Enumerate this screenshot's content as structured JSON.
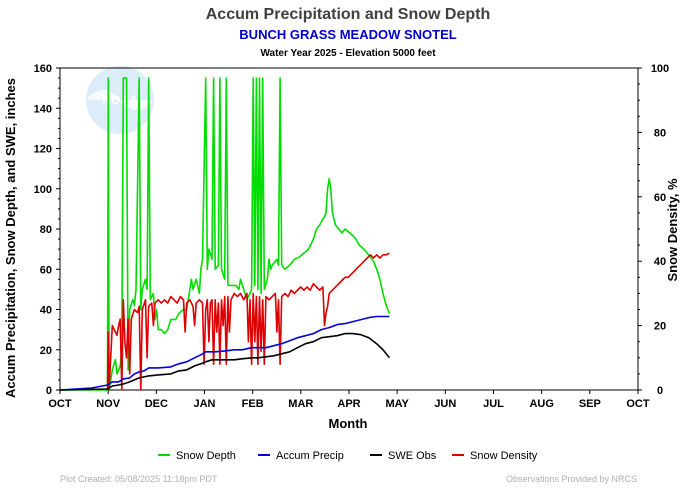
{
  "chart_data": {
    "type": "line",
    "title": "Accum Precipitation and Snow Depth",
    "subtitle": "BUNCH GRASS MEADOW SNOTEL",
    "subtitle2": "Water Year 2025 -  Elevation 5000 feet",
    "xlabel": "Month",
    "ylabel": "Accum Precipitation, Snow Depth, and SWE, inches",
    "y2label": "Snow Density, %",
    "x_ticks": [
      "OCT",
      "NOV",
      "DEC",
      "JAN",
      "FEB",
      "MAR",
      "APR",
      "MAY",
      "JUN",
      "JUL",
      "AUG",
      "SEP",
      "OCT"
    ],
    "y_ticks": [
      "0",
      "20",
      "40",
      "60",
      "80",
      "100",
      "120",
      "140",
      "160"
    ],
    "y2_ticks": [
      "0",
      "20",
      "40",
      "60",
      "80",
      "100"
    ],
    "ylim": [
      0,
      160
    ],
    "y2lim": [
      0,
      100
    ],
    "xlim_days": [
      0,
      365
    ],
    "grid": false,
    "legend_position": "bottom",
    "footer_left": "Plot Created: 05/08/2025 11:18pm PDT",
    "footer_right": "Observations Provided by NRCS",
    "watermark": "NOAA",
    "series": [
      {
        "name": "Snow Depth",
        "color": "#00dd00",
        "axis": "left",
        "points": [
          [
            0,
            0
          ],
          [
            30,
            0
          ],
          [
            30.5,
            155
          ],
          [
            31,
            0
          ],
          [
            33,
            10
          ],
          [
            35,
            15
          ],
          [
            36,
            8
          ],
          [
            38,
            12
          ],
          [
            39,
            20
          ],
          [
            40,
            155
          ],
          [
            42,
            155
          ],
          [
            43,
            10
          ],
          [
            44,
            40
          ],
          [
            46,
            45
          ],
          [
            47,
            42
          ],
          [
            48,
            50
          ],
          [
            50,
            155
          ],
          [
            51,
            40
          ],
          [
            52,
            50
          ],
          [
            54,
            55
          ],
          [
            55,
            50
          ],
          [
            56,
            155
          ],
          [
            57,
            45
          ],
          [
            59,
            48
          ],
          [
            60,
            35
          ],
          [
            61,
            40
          ],
          [
            62,
            30
          ],
          [
            64,
            30
          ],
          [
            66,
            28
          ],
          [
            68,
            30
          ],
          [
            70,
            35
          ],
          [
            73,
            35
          ],
          [
            75,
            38
          ],
          [
            78,
            40
          ],
          [
            80,
            40
          ],
          [
            81,
            45
          ],
          [
            83,
            55
          ],
          [
            84,
            50
          ],
          [
            86,
            55
          ],
          [
            88,
            48
          ],
          [
            89,
            60
          ],
          [
            90,
            65
          ],
          [
            92,
            155
          ],
          [
            93,
            60
          ],
          [
            94,
            70
          ],
          [
            96,
            65
          ],
          [
            97,
            155
          ],
          [
            98,
            60
          ],
          [
            100,
            62
          ],
          [
            101,
            155
          ],
          [
            102,
            60
          ],
          [
            104,
            55
          ],
          [
            105,
            155
          ],
          [
            106,
            52
          ],
          [
            108,
            52
          ],
          [
            111,
            52
          ],
          [
            113,
            50
          ],
          [
            114,
            55
          ],
          [
            116,
            50
          ],
          [
            118,
            45
          ],
          [
            120,
            48
          ],
          [
            121,
            50
          ],
          [
            122,
            155
          ],
          [
            123,
            52
          ],
          [
            124,
            155
          ],
          [
            125,
            50
          ],
          [
            126,
            155
          ],
          [
            127,
            48
          ],
          [
            128,
            155
          ],
          [
            129,
            50
          ],
          [
            131,
            55
          ],
          [
            132,
            65
          ],
          [
            133,
            60
          ],
          [
            134,
            62
          ],
          [
            137,
            65
          ],
          [
            138,
            62
          ],
          [
            139,
            155
          ],
          [
            140,
            62
          ],
          [
            142,
            60
          ],
          [
            145,
            62
          ],
          [
            148,
            65
          ],
          [
            151,
            66
          ],
          [
            154,
            68
          ],
          [
            157,
            70
          ],
          [
            160,
            75
          ],
          [
            162,
            80
          ],
          [
            164,
            82
          ],
          [
            166,
            85
          ],
          [
            167,
            86
          ],
          [
            168,
            88
          ],
          [
            169,
            100
          ],
          [
            170,
            105
          ],
          [
            171,
            100
          ],
          [
            172,
            88
          ],
          [
            174,
            82
          ],
          [
            176,
            80
          ],
          [
            178,
            78
          ],
          [
            180,
            80
          ],
          [
            183,
            78
          ],
          [
            186,
            76
          ],
          [
            189,
            72
          ],
          [
            192,
            70
          ],
          [
            195,
            67
          ],
          [
            198,
            64
          ],
          [
            200,
            60
          ],
          [
            202,
            55
          ],
          [
            204,
            48
          ],
          [
            206,
            42
          ],
          [
            208,
            38
          ]
        ]
      },
      {
        "name": "Accum Precip",
        "color": "#0000dd",
        "axis": "left",
        "points": [
          [
            0,
            0
          ],
          [
            20,
            1
          ],
          [
            30,
            2.5
          ],
          [
            33,
            4
          ],
          [
            37,
            4
          ],
          [
            40,
            5.5
          ],
          [
            44,
            6
          ],
          [
            47,
            8
          ],
          [
            50,
            9
          ],
          [
            53,
            9.5
          ],
          [
            56,
            11
          ],
          [
            62,
            11
          ],
          [
            70,
            11.5
          ],
          [
            75,
            13
          ],
          [
            80,
            14
          ],
          [
            85,
            16
          ],
          [
            89,
            17.5
          ],
          [
            92,
            19
          ],
          [
            98,
            19
          ],
          [
            105,
            19.5
          ],
          [
            110,
            20
          ],
          [
            115,
            20
          ],
          [
            121,
            21
          ],
          [
            125,
            21
          ],
          [
            130,
            21
          ],
          [
            135,
            22
          ],
          [
            140,
            23
          ],
          [
            145,
            24.5
          ],
          [
            150,
            26
          ],
          [
            155,
            27
          ],
          [
            160,
            28
          ],
          [
            165,
            30
          ],
          [
            170,
            31
          ],
          [
            175,
            32.5
          ],
          [
            180,
            33
          ],
          [
            185,
            34
          ],
          [
            190,
            35
          ],
          [
            195,
            36
          ],
          [
            200,
            36.5
          ],
          [
            208,
            36.5
          ]
        ]
      },
      {
        "name": "SWE Obs",
        "color": "#000000",
        "axis": "left",
        "points": [
          [
            0,
            0
          ],
          [
            30,
            0.5
          ],
          [
            33,
            2
          ],
          [
            37,
            2.5
          ],
          [
            40,
            3
          ],
          [
            44,
            4
          ],
          [
            47,
            5
          ],
          [
            50,
            6
          ],
          [
            53,
            6.5
          ],
          [
            56,
            7
          ],
          [
            62,
            7.5
          ],
          [
            70,
            8
          ],
          [
            75,
            9.5
          ],
          [
            80,
            10
          ],
          [
            85,
            12
          ],
          [
            89,
            13
          ],
          [
            92,
            14
          ],
          [
            96,
            15
          ],
          [
            100,
            15
          ],
          [
            105,
            15
          ],
          [
            110,
            15
          ],
          [
            115,
            15.5
          ],
          [
            121,
            16
          ],
          [
            125,
            16
          ],
          [
            130,
            16.5
          ],
          [
            135,
            17
          ],
          [
            140,
            18
          ],
          [
            145,
            19
          ],
          [
            150,
            21
          ],
          [
            155,
            23
          ],
          [
            160,
            24
          ],
          [
            165,
            26
          ],
          [
            170,
            26.5
          ],
          [
            175,
            27
          ],
          [
            180,
            28
          ],
          [
            185,
            28
          ],
          [
            190,
            27.5
          ],
          [
            195,
            26
          ],
          [
            200,
            23
          ],
          [
            204,
            20
          ],
          [
            208,
            16
          ]
        ]
      },
      {
        "name": "Snow Density",
        "color": "#dd0000",
        "axis": "right",
        "points": [
          [
            30,
            0
          ],
          [
            30.5,
            18
          ],
          [
            31,
            0
          ],
          [
            33,
            20
          ],
          [
            35,
            18
          ],
          [
            36,
            17
          ],
          [
            37,
            20
          ],
          [
            38,
            22
          ],
          [
            39,
            0
          ],
          [
            40,
            28
          ],
          [
            41,
            15
          ],
          [
            42,
            10
          ],
          [
            43,
            22
          ],
          [
            44,
            5
          ],
          [
            45,
            22
          ],
          [
            47,
            25
          ],
          [
            49,
            24
          ],
          [
            50,
            26
          ],
          [
            51,
            0
          ],
          [
            52,
            25
          ],
          [
            54,
            28
          ],
          [
            55,
            10
          ],
          [
            56,
            26
          ],
          [
            58,
            27
          ],
          [
            59,
            20
          ],
          [
            60,
            27
          ],
          [
            62,
            28
          ],
          [
            64,
            27
          ],
          [
            66,
            28
          ],
          [
            68,
            27
          ],
          [
            70,
            29
          ],
          [
            72,
            28
          ],
          [
            74,
            27
          ],
          [
            76,
            29
          ],
          [
            78,
            28
          ],
          [
            79,
            18
          ],
          [
            80,
            27
          ],
          [
            82,
            28
          ],
          [
            84,
            26
          ],
          [
            85,
            20
          ],
          [
            86,
            27
          ],
          [
            88,
            28
          ],
          [
            90,
            27
          ],
          [
            91,
            8
          ],
          [
            92,
            25
          ],
          [
            93,
            28
          ],
          [
            94,
            15
          ],
          [
            95,
            27
          ],
          [
            96,
            28
          ],
          [
            97,
            8
          ],
          [
            98,
            28
          ],
          [
            99,
            18
          ],
          [
            100,
            27
          ],
          [
            101,
            8
          ],
          [
            102,
            28
          ],
          [
            103,
            20
          ],
          [
            104,
            29
          ],
          [
            105,
            8
          ],
          [
            106,
            29
          ],
          [
            107,
            18
          ],
          [
            108,
            28
          ],
          [
            110,
            30
          ],
          [
            112,
            29
          ],
          [
            114,
            30
          ],
          [
            116,
            28
          ],
          [
            118,
            30
          ],
          [
            119,
            15
          ],
          [
            120,
            28
          ],
          [
            121,
            8
          ],
          [
            122,
            30
          ],
          [
            123,
            15
          ],
          [
            124,
            29
          ],
          [
            125,
            8
          ],
          [
            126,
            29
          ],
          [
            127,
            12
          ],
          [
            128,
            28
          ],
          [
            129,
            8
          ],
          [
            130,
            29
          ],
          [
            132,
            28
          ],
          [
            134,
            29
          ],
          [
            136,
            30
          ],
          [
            137,
            18
          ],
          [
            138,
            28
          ],
          [
            139,
            8
          ],
          [
            140,
            29
          ],
          [
            142,
            30
          ],
          [
            144,
            29
          ],
          [
            146,
            31
          ],
          [
            148,
            30
          ],
          [
            150,
            31
          ],
          [
            152,
            32
          ],
          [
            154,
            31
          ],
          [
            156,
            32
          ],
          [
            158,
            31
          ],
          [
            160,
            33
          ],
          [
            162,
            32
          ],
          [
            164,
            31
          ],
          [
            166,
            32
          ],
          [
            167,
            20
          ],
          [
            168,
            24
          ],
          [
            169,
            26
          ],
          [
            170,
            30
          ],
          [
            172,
            31
          ],
          [
            174,
            32
          ],
          [
            176,
            33
          ],
          [
            178,
            34
          ],
          [
            180,
            35
          ],
          [
            182,
            35
          ],
          [
            184,
            36
          ],
          [
            186,
            37
          ],
          [
            188,
            38
          ],
          [
            190,
            39
          ],
          [
            192,
            40
          ],
          [
            194,
            41
          ],
          [
            196,
            42
          ],
          [
            198,
            41
          ],
          [
            200,
            42
          ],
          [
            202,
            41
          ],
          [
            204,
            42
          ],
          [
            206,
            42
          ],
          [
            208,
            42.5
          ]
        ]
      }
    ]
  }
}
